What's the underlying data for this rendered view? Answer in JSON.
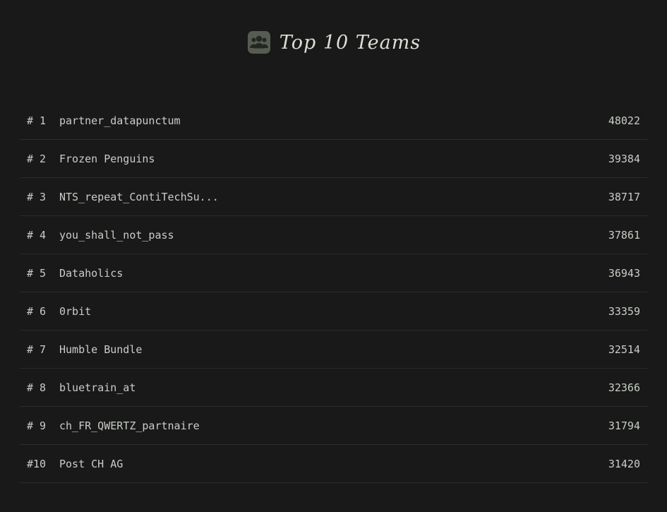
{
  "page": {
    "title": "Top 10 Teams"
  },
  "colors": {
    "bg": "#191919",
    "bar": "#a5d49b",
    "text": "#c8cec6",
    "title": "#dfdcd5",
    "divider": "#2b2b2b"
  },
  "leaderboard": {
    "max_value": 48022,
    "rows": [
      {
        "rank": "# 1",
        "team": "partner_datapunctum",
        "score": 48022
      },
      {
        "rank": "# 2",
        "team": "Frozen Penguins",
        "score": 39384
      },
      {
        "rank": "# 3",
        "team": "NTS_repeat_ContiTechSu...",
        "score": 38717
      },
      {
        "rank": "# 4",
        "team": "you_shall_not_pass",
        "score": 37861
      },
      {
        "rank": "# 5",
        "team": "Dataholics",
        "score": 36943
      },
      {
        "rank": "# 6",
        "team": "0rbit",
        "score": 33359
      },
      {
        "rank": "# 7",
        "team": "Humble Bundle",
        "score": 32514
      },
      {
        "rank": "# 8",
        "team": "bluetrain_at",
        "score": 32366
      },
      {
        "rank": "# 9",
        "team": "ch_FR_QWERTZ_partnaire",
        "score": 31794
      },
      {
        "rank": "#10",
        "team": "Post CH AG",
        "score": 31420
      }
    ]
  },
  "chart_data": {
    "type": "bar",
    "orientation": "horizontal",
    "title": "Top 10 Teams",
    "categories": [
      "partner_datapunctum",
      "Frozen Penguins",
      "NTS_repeat_ContiTechSu...",
      "you_shall_not_pass",
      "Dataholics",
      "0rbit",
      "Humble Bundle",
      "bluetrain_at",
      "ch_FR_QWERTZ_partnaire",
      "Post CH AG"
    ],
    "values": [
      48022,
      39384,
      38717,
      37861,
      36943,
      33359,
      32514,
      32366,
      31794,
      31420
    ],
    "xlabel": "",
    "ylabel": "",
    "xlim": [
      0,
      48022
    ],
    "grid": false,
    "legend": false,
    "bar_color": "#a5d49b",
    "value_labels": "right-aligned numeric"
  }
}
